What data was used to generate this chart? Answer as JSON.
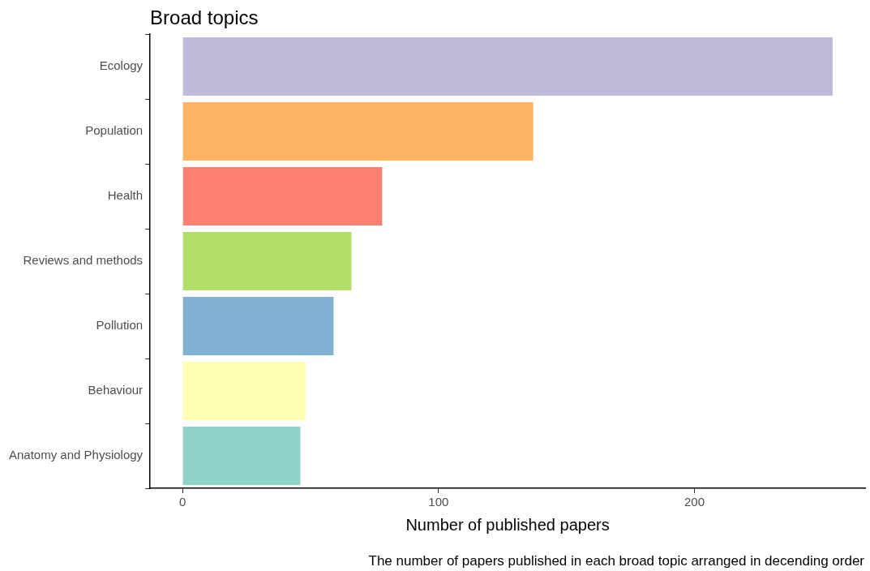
{
  "chart_data": {
    "type": "bar",
    "orientation": "horizontal",
    "title": "Broad topics",
    "xlabel": "Number of published papers",
    "categories": [
      "Ecology",
      "Population",
      "Health",
      "Reviews and methods",
      "Pollution",
      "Behaviour",
      "Anatomy and Physiology"
    ],
    "values": [
      254,
      137,
      78,
      66,
      59,
      48,
      46
    ],
    "colors": [
      "#bebada",
      "#fdb462",
      "#fb8072",
      "#b3de69",
      "#80b1d3",
      "#ffffb3",
      "#8dd3c7"
    ],
    "xlim": [
      -12.7,
      266.7
    ],
    "xticks": [
      0,
      100,
      200
    ],
    "grid": false,
    "legend": false,
    "annotations": [
      "The number of papers published in each broad topic arranged in decending order"
    ]
  }
}
